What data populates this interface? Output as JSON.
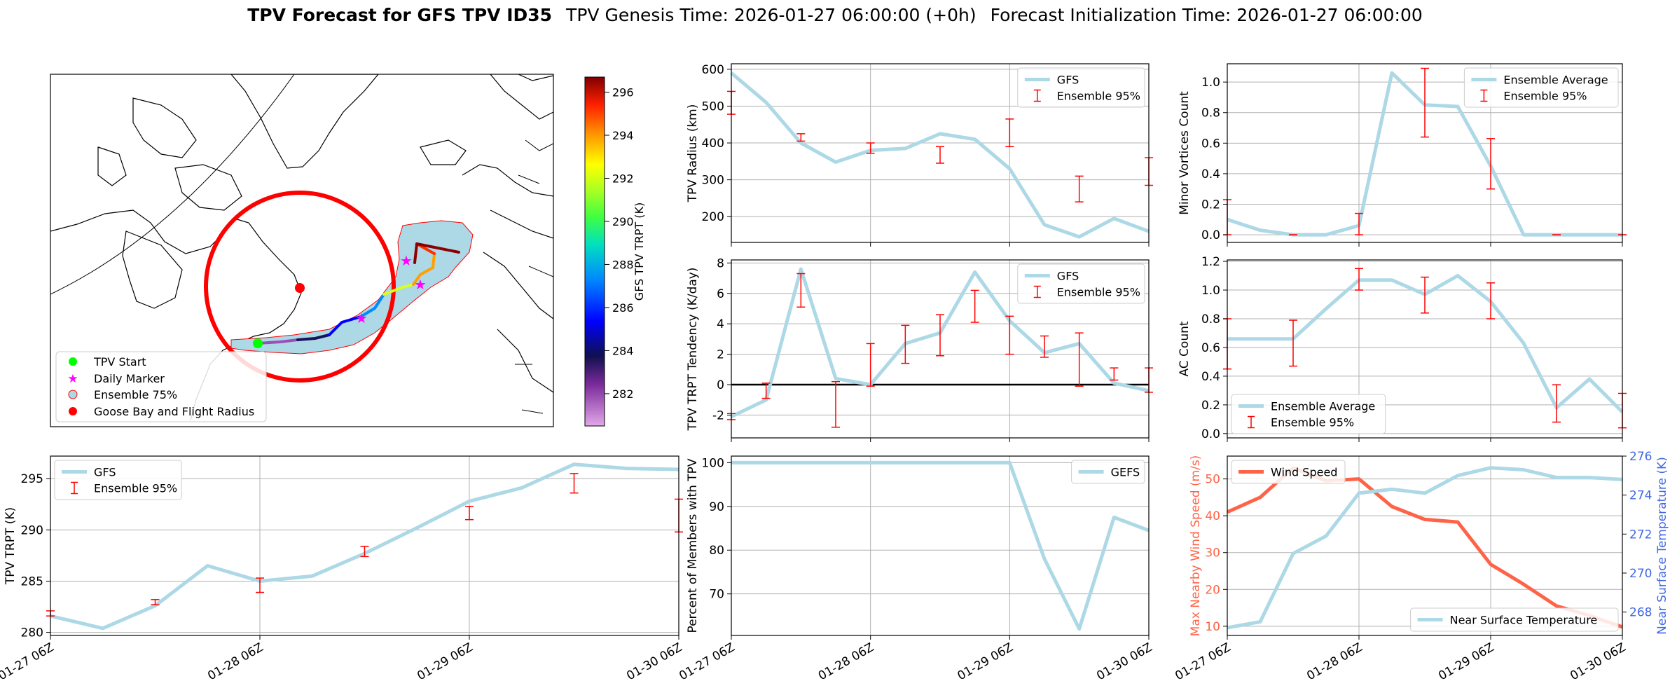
{
  "header": {
    "bold": "TPV Forecast for GFS TPV ID35",
    "genesis": "TPV Genesis Time: 2026-01-27 06:00:00 (+0h)",
    "init": "Forecast Initialization Time: 2026-01-27 06:00:00"
  },
  "colors": {
    "gfs": "#add8e6",
    "err": "#ff0000",
    "wind": "#ff6347",
    "temp_axis": "#4169e1",
    "wind_axis": "#ff6347",
    "goose": "#ff0000",
    "start": "#00ff00",
    "star": "#ff00ff",
    "ens75": "#add8e6"
  },
  "time_ticks": [
    "01-27 06Z",
    "01-28 06Z",
    "01-29 06Z",
    "01-30 06Z"
  ],
  "map": {
    "legend": [
      "TPV Start",
      "Daily Marker",
      "Ensemble 75%",
      "Goose Bay and Flight Radius"
    ],
    "colorbar": {
      "label": "GFS TPV TRPT (K)",
      "ticks": [
        282,
        284,
        286,
        288,
        290,
        292,
        294,
        296
      ],
      "min": 280.5,
      "max": 296.7
    }
  },
  "chart_data": [
    {
      "id": "radius",
      "type": "line",
      "xlim": [
        0,
        72
      ],
      "ylim": [
        130,
        615
      ],
      "ylabel": "TPV Radius (km)",
      "yticks": [
        200,
        300,
        400,
        500,
        600
      ],
      "series": [
        {
          "name": "GFS",
          "x": [
            0,
            6,
            12,
            18,
            24,
            30,
            36,
            42,
            48,
            54,
            60,
            66,
            72
          ],
          "y": [
            590,
            510,
            400,
            348,
            380,
            385,
            425,
            410,
            330,
            178,
            145,
            195,
            160
          ]
        }
      ],
      "errorbars": {
        "name": "Ensemble 95%",
        "x": [
          0,
          12,
          24,
          36,
          48,
          60,
          72
        ],
        "lo": [
          478,
          405,
          372,
          345,
          390,
          240,
          285
        ],
        "hi": [
          540,
          425,
          400,
          390,
          465,
          310,
          360
        ]
      },
      "legend": [
        "GFS",
        "Ensemble 95%"
      ],
      "legend_pos": "upper right"
    },
    {
      "id": "minor",
      "type": "line",
      "xlim": [
        0,
        72
      ],
      "ylim": [
        -0.05,
        1.12
      ],
      "ylabel": "Minor Vortices Count",
      "yticks": [
        0.0,
        0.2,
        0.4,
        0.6,
        0.8,
        1.0
      ],
      "series": [
        {
          "name": "Ensemble Average",
          "x": [
            0,
            6,
            12,
            18,
            24,
            30,
            36,
            42,
            48,
            54,
            60,
            66,
            72
          ],
          "y": [
            0.1,
            0.03,
            0.0,
            0.0,
            0.06,
            1.06,
            0.85,
            0.84,
            0.45,
            0.0,
            0.0,
            0.0,
            0.0
          ]
        }
      ],
      "errorbars": {
        "name": "Ensemble 95%",
        "x": [
          0,
          12,
          24,
          36,
          48,
          60,
          72
        ],
        "lo": [
          0.0,
          0.0,
          0.0,
          0.64,
          0.3,
          0.0,
          0.0
        ],
        "hi": [
          0.23,
          0.0,
          0.14,
          1.09,
          0.63,
          0.0,
          0.0
        ]
      },
      "legend": [
        "Ensemble Average",
        "Ensemble 95%"
      ],
      "legend_pos": "upper right"
    },
    {
      "id": "tendency",
      "type": "line",
      "xlim": [
        0,
        72
      ],
      "ylim": [
        -3.5,
        8.2
      ],
      "ylabel": "TPV TRPT Tendency (K/day)",
      "yticks": [
        -2,
        0,
        2,
        4,
        6,
        8
      ],
      "series": [
        {
          "name": "GFS",
          "x": [
            0,
            6,
            12,
            18,
            24,
            30,
            36,
            42,
            48,
            54,
            60,
            66,
            72
          ],
          "y": [
            -2.1,
            -1.0,
            7.6,
            0.4,
            0.0,
            2.7,
            3.4,
            7.4,
            4.2,
            2.1,
            2.7,
            0.1,
            -0.4
          ]
        }
      ],
      "errorbars": {
        "name": "Ensemble 95%",
        "x": [
          0,
          6,
          12,
          18,
          24,
          30,
          36,
          42,
          48,
          54,
          60,
          66,
          72
        ],
        "lo": [
          -2.3,
          -0.9,
          5.1,
          -2.8,
          -0.1,
          1.4,
          1.9,
          4.1,
          2.0,
          1.8,
          -0.1,
          0.3,
          -0.5
        ],
        "hi": [
          -1.9,
          0.1,
          7.3,
          0.2,
          2.7,
          3.9,
          4.6,
          6.2,
          4.5,
          3.2,
          3.4,
          1.1,
          1.1
        ]
      },
      "zero_line": true,
      "legend": [
        "GFS",
        "Ensemble 95%"
      ],
      "legend_pos": "upper right"
    },
    {
      "id": "ac",
      "type": "line",
      "xlim": [
        0,
        72
      ],
      "ylim": [
        -0.03,
        1.21
      ],
      "ylabel": "AC Count",
      "yticks": [
        0.0,
        0.2,
        0.4,
        0.6,
        0.8,
        1.0,
        1.2
      ],
      "series": [
        {
          "name": "Ensemble Average",
          "x": [
            0,
            6,
            12,
            18,
            24,
            30,
            36,
            42,
            48,
            54,
            60,
            66,
            72
          ],
          "y": [
            0.66,
            0.66,
            0.66,
            0.87,
            1.07,
            1.07,
            0.97,
            1.1,
            0.92,
            0.63,
            0.18,
            0.38,
            0.15
          ]
        }
      ],
      "errorbars": {
        "name": "Ensemble 95%",
        "x": [
          0,
          12,
          24,
          36,
          48,
          60,
          72
        ],
        "lo": [
          0.45,
          0.47,
          1.0,
          0.84,
          0.8,
          0.08,
          0.04
        ],
        "hi": [
          0.8,
          0.79,
          1.15,
          1.09,
          1.05,
          0.34,
          0.28
        ]
      },
      "legend": [
        "Ensemble Average",
        "Ensemble 95%"
      ],
      "legend_pos": "lower left"
    },
    {
      "id": "trpt",
      "type": "line",
      "xlim": [
        0,
        72
      ],
      "ylim": [
        279.7,
        297.2
      ],
      "ylabel": "TPV TRPT (K)",
      "yticks": [
        280,
        285,
        290,
        295
      ],
      "series": [
        {
          "name": "GFS",
          "x": [
            0,
            6,
            12,
            18,
            24,
            30,
            36,
            42,
            48,
            54,
            60,
            66,
            72
          ],
          "y": [
            281.6,
            280.4,
            282.6,
            286.5,
            285.0,
            285.5,
            287.7,
            290.2,
            292.8,
            294.1,
            296.4,
            296.0,
            295.9
          ]
        }
      ],
      "errorbars": {
        "name": "Ensemble 95%",
        "x": [
          0,
          12,
          24,
          36,
          48,
          60,
          72
        ],
        "lo": [
          281.6,
          282.7,
          283.9,
          287.4,
          291.0,
          293.6,
          289.8
        ],
        "hi": [
          282.1,
          283.2,
          285.3,
          288.4,
          292.3,
          295.5,
          293.0
        ]
      },
      "legend": [
        "GFS",
        "Ensemble 95%"
      ],
      "legend_pos": "upper left"
    },
    {
      "id": "percent",
      "type": "line",
      "xlim": [
        0,
        72
      ],
      "ylim": [
        60.5,
        101.5
      ],
      "ylabel": "Percent of Members with TPV",
      "yticks": [
        70,
        80,
        90,
        100
      ],
      "series": [
        {
          "name": "GEFS",
          "x": [
            0,
            6,
            12,
            18,
            24,
            30,
            36,
            42,
            48,
            54,
            60,
            66,
            72
          ],
          "y": [
            100,
            100,
            100,
            100,
            100,
            100,
            100,
            100,
            100,
            78,
            62,
            87.5,
            84.5
          ]
        }
      ],
      "legend": [
        "GEFS"
      ],
      "legend_pos": "upper right"
    },
    {
      "id": "wind_temp",
      "type": "line",
      "xlim": [
        0,
        72
      ],
      "ylim": [
        7.5,
        56.2
      ],
      "ylim_right": [
        266.8,
        276
      ],
      "ylabel": "Max Nearby Wind Speed (m/s)",
      "ylabel_right": "Near Surface Temperature (K)",
      "yticks": [
        10,
        20,
        30,
        40,
        50
      ],
      "yticks_right": [
        268,
        270,
        272,
        274,
        276
      ],
      "series": [
        {
          "name": "Wind Speed",
          "axis": "left",
          "x": [
            0,
            6,
            12,
            18,
            24,
            30,
            36,
            42,
            48,
            54,
            60,
            66,
            72
          ],
          "y": [
            41,
            45,
            53,
            49.5,
            50,
            42.5,
            39,
            38.3,
            26.8,
            21.4,
            15.5,
            12.9,
            9.8
          ]
        },
        {
          "name": "Near Surface Temperature",
          "axis": "right",
          "x": [
            0,
            6,
            12,
            18,
            24,
            30,
            36,
            42,
            48,
            54,
            60,
            66,
            72
          ],
          "y": [
            267.2,
            267.5,
            271,
            271.9,
            274.1,
            274.3,
            274.1,
            275,
            275.4,
            275.3,
            274.9,
            274.9,
            274.8
          ]
        }
      ],
      "legend": [
        "Wind Speed",
        "Near Surface Temperature"
      ]
    }
  ]
}
